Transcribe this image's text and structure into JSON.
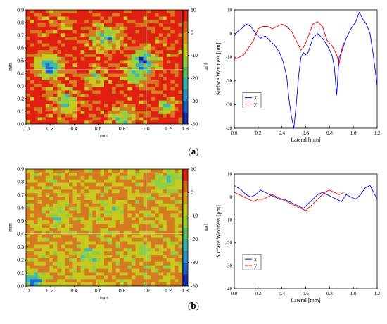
{
  "panels": [
    {
      "label": "a",
      "chart_data": [
        {
          "type": "heatmap",
          "xlabel": "mm",
          "ylabel": "mm",
          "x_ticks": [
            "0.0",
            "0.2",
            "0.4",
            "0.6",
            "0.8",
            "1.0",
            "1.2",
            "1.3"
          ],
          "y_ticks": [
            "0.0",
            "0.1",
            "0.2",
            "0.3",
            "0.4",
            "0.5",
            "0.6",
            "0.7",
            "0.8",
            "0.9"
          ],
          "colorbar_ticks": [
            "10",
            "0",
            "-10",
            "-20",
            "-30",
            "-40"
          ],
          "colorbar_unit": "μm",
          "colors": [
            "#1a1aa0",
            "#1f6fd0",
            "#3fb8b0",
            "#8fcf40",
            "#c8c820",
            "#d67a20",
            "#e02010"
          ],
          "crosshair": {
            "x": 0.77,
            "y": 0.48
          }
        },
        {
          "type": "line",
          "xlabel": "Lateral [mm]",
          "ylabel": "Surface Waviness [μm]",
          "xlim": [
            0,
            1.2
          ],
          "ylim": [
            -40,
            10
          ],
          "x_ticks": [
            "0.0",
            "0.2",
            "0.4",
            "0.6",
            "0.8",
            "1.0",
            "1.2"
          ],
          "y_ticks": [
            "10",
            "0",
            "-10",
            "-20",
            "-30",
            "-40"
          ],
          "legend": "bottom-left",
          "series": [
            {
              "name": "x",
              "color": "#0000ee",
              "x": [
                0,
                0.03,
                0.06,
                0.1,
                0.14,
                0.18,
                0.22,
                0.26,
                0.3,
                0.34,
                0.38,
                0.41,
                0.44,
                0.46,
                0.48,
                0.5,
                0.52,
                0.54,
                0.56,
                0.58,
                0.6,
                0.62,
                0.64,
                0.66,
                0.7,
                0.74,
                0.78,
                0.82,
                0.84,
                0.86,
                0.88,
                0.9,
                0.94,
                0.98,
                1.02,
                1.05,
                1.08,
                1.11,
                1.14,
                1.17,
                1.2
              ],
              "y": [
                -1,
                1,
                2,
                4,
                3,
                0,
                -2,
                -1,
                -3,
                -5,
                -8,
                -12,
                -18,
                -28,
                -35,
                -40,
                -30,
                -18,
                -10,
                -8,
                -9,
                -8,
                -5,
                -2,
                0,
                -2,
                -5,
                -9,
                -14,
                -26,
                -10,
                -8,
                -2,
                2,
                5,
                9,
                6,
                4,
                0,
                -10,
                -22
              ]
            },
            {
              "name": "y",
              "color": "#ee0000",
              "x": [
                0,
                0.04,
                0.08,
                0.12,
                0.16,
                0.2,
                0.24,
                0.28,
                0.32,
                0.36,
                0.4,
                0.44,
                0.48,
                0.52,
                0.56,
                0.58,
                0.6,
                0.63,
                0.66,
                0.7,
                0.74,
                0.78,
                0.82,
                0.86,
                0.88,
                0.9,
                0.92
              ],
              "y": [
                -11,
                -10,
                -9,
                -6,
                -3,
                2,
                3,
                3,
                2,
                3,
                4,
                3,
                1,
                -3,
                -7,
                -6,
                -4,
                0,
                4,
                5,
                3,
                -3,
                -5,
                -9,
                -13,
                -7,
                -4
              ]
            }
          ]
        }
      ]
    },
    {
      "label": "b",
      "chart_data": [
        {
          "type": "heatmap",
          "xlabel": "mm",
          "ylabel": "mm",
          "x_ticks": [
            "0.0",
            "0.2",
            "0.4",
            "0.6",
            "0.8",
            "1.0",
            "1.2",
            "1.3"
          ],
          "y_ticks": [
            "0.0",
            "0.1",
            "0.2",
            "0.3",
            "0.4",
            "0.5",
            "0.6",
            "0.7",
            "0.8",
            "0.9"
          ],
          "colorbar_ticks": [
            "10",
            "0",
            "-10",
            "-20",
            "-30",
            "-40"
          ],
          "colorbar_unit": "μm",
          "colors": [
            "#1a1aa0",
            "#1f6fd0",
            "#3fb8b0",
            "#8fcf40",
            "#c8c820",
            "#d67a20",
            "#e02010"
          ],
          "crosshair": {
            "x": 0.77,
            "y": 0.45
          }
        },
        {
          "type": "line",
          "xlabel": "Lateral [mm]",
          "ylabel": "Surface Waviness [μm]",
          "xlim": [
            0,
            1.2
          ],
          "ylim": [
            -40,
            10
          ],
          "x_ticks": [
            "0.0",
            "0.2",
            "0.4",
            "0.6",
            "0.8",
            "1.0",
            "1.2"
          ],
          "y_ticks": [
            "10",
            "0",
            "-10",
            "-20",
            "-30",
            "-40"
          ],
          "legend": "bottom-left",
          "series": [
            {
              "name": "x",
              "color": "#0000ee",
              "x": [
                0,
                0.03,
                0.06,
                0.1,
                0.14,
                0.18,
                0.22,
                0.26,
                0.3,
                0.34,
                0.38,
                0.42,
                0.46,
                0.5,
                0.54,
                0.58,
                0.62,
                0.66,
                0.7,
                0.74,
                0.78,
                0.82,
                0.86,
                0.9,
                0.94,
                0.98,
                1.02,
                1.06,
                1.1,
                1.14,
                1.17,
                1.2
              ],
              "y": [
                5,
                4,
                3,
                1,
                0,
                1,
                3,
                2,
                1,
                0,
                -1,
                -1,
                -2,
                -3,
                -4,
                -5,
                -3,
                -1,
                1,
                2,
                1,
                0,
                -1,
                -2,
                1,
                0,
                -1,
                1,
                4,
                5,
                2,
                -1
              ]
            },
            {
              "name": "y",
              "color": "#ee0000",
              "x": [
                0,
                0.04,
                0.08,
                0.12,
                0.16,
                0.2,
                0.24,
                0.28,
                0.32,
                0.36,
                0.4,
                0.44,
                0.48,
                0.52,
                0.56,
                0.6,
                0.64,
                0.68,
                0.72,
                0.76,
                0.8,
                0.84,
                0.88,
                0.92
              ],
              "y": [
                2,
                1,
                0,
                -1,
                -2,
                -1,
                -1,
                0,
                1,
                0,
                -1,
                -2,
                -3,
                -4,
                -5,
                -6,
                -4,
                -2,
                0,
                2,
                3,
                2,
                1,
                2
              ]
            }
          ]
        }
      ]
    }
  ]
}
